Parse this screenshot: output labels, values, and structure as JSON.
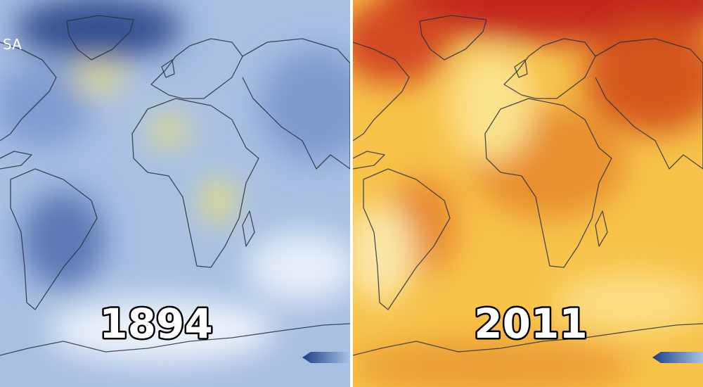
{
  "left_panel": {
    "logo": "SA",
    "year": "1894"
  },
  "right_panel": {
    "year": "2011"
  }
}
